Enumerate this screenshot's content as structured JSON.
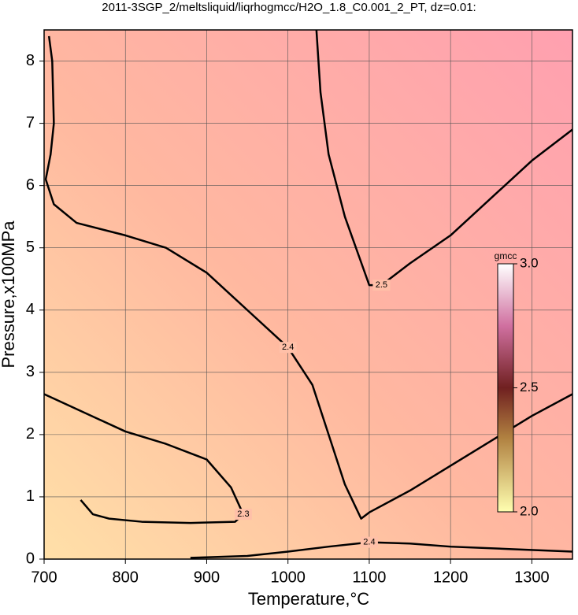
{
  "chart_data": {
    "type": "contour",
    "title": "2011-3SGP_2/meltsliquid/liqrhogmcc/H2O_1.8_C0.001_2_PT, dz=0.01:",
    "x_label": "Temperature,°C",
    "y_label": "Pressure,x100MPa",
    "xlim": [
      700,
      1350
    ],
    "ylim": [
      0,
      8.5
    ],
    "xticks": [
      700,
      800,
      900,
      1000,
      1100,
      1200,
      1300
    ],
    "yticks": [
      0,
      1,
      2,
      3,
      4,
      5,
      6,
      7,
      8
    ],
    "grid": true,
    "contours": [
      {
        "level": 2.4,
        "x": [
          706,
          710,
          712,
          708,
          702,
          712,
          740,
          800,
          850,
          900,
          950,
          1000,
          1030,
          1050,
          1070,
          1090,
          1100,
          1150,
          1200,
          1250,
          1300,
          1350
        ],
        "y": [
          8.4,
          8.0,
          7.0,
          6.5,
          6.1,
          5.7,
          5.4,
          5.2,
          5.0,
          4.6,
          4.0,
          3.4,
          2.8,
          2.0,
          1.2,
          0.65,
          0.75,
          1.1,
          1.5,
          1.9,
          2.3,
          2.65
        ]
      },
      {
        "level": 2.5,
        "x": [
          1035,
          1040,
          1050,
          1070,
          1100,
          1115,
          1150,
          1200,
          1250,
          1300,
          1350
        ],
        "y": [
          8.5,
          7.5,
          6.5,
          5.5,
          4.4,
          4.4,
          4.75,
          5.2,
          5.8,
          6.4,
          6.9
        ]
      },
      {
        "level": 2.3,
        "x": [
          700,
          750,
          800,
          850,
          900,
          930,
          945,
          935,
          880,
          820,
          780,
          760,
          745
        ],
        "y": [
          2.65,
          2.35,
          2.05,
          1.85,
          1.6,
          1.15,
          0.72,
          0.6,
          0.58,
          0.6,
          0.65,
          0.72,
          0.95
        ]
      },
      {
        "level": 2.4,
        "x": [
          880,
          950,
          1000,
          1050,
          1100,
          1150,
          1200,
          1275,
          1350
        ],
        "y": [
          0.02,
          0.05,
          0.12,
          0.2,
          0.27,
          0.25,
          0.2,
          0.16,
          0.12
        ]
      }
    ],
    "colorbar": {
      "label": "gmcc",
      "lim": [
        2.0,
        3.0
      ],
      "ticks": [
        {
          "value": 2,
          "label": "2.0"
        },
        {
          "value": 2.5,
          "label": "2.5"
        },
        {
          "value": 3,
          "label": "3.0"
        }
      ]
    }
  }
}
